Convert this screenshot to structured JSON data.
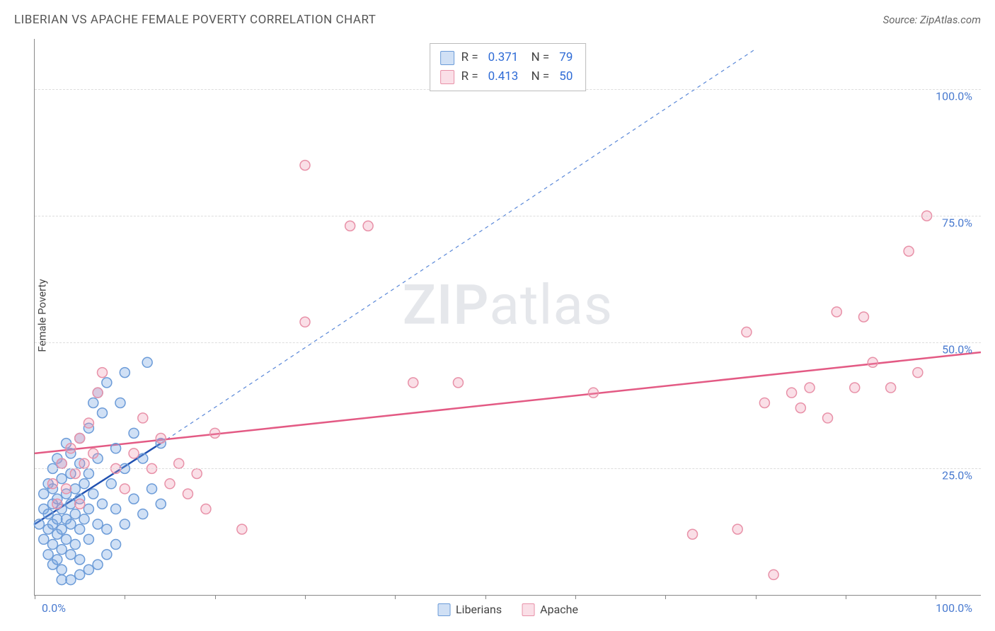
{
  "header": {
    "title": "LIBERIAN VS APACHE FEMALE POVERTY CORRELATION CHART",
    "source": "Source: ZipAtlas.com"
  },
  "ylabel": "Female Poverty",
  "watermark_prefix": "ZIP",
  "watermark_suffix": "atlas",
  "chart": {
    "type": "scatter",
    "background_color": "#ffffff",
    "grid_color": "#dddddd",
    "axis_color": "#888888",
    "label_color": "#4a7bd0",
    "x_min": 0,
    "x_max": 105,
    "y_min": 0,
    "y_max": 110,
    "y_ticks": [
      25,
      50,
      75,
      100
    ],
    "y_tick_labels": [
      "25.0%",
      "50.0%",
      "75.0%",
      "100.0%"
    ],
    "x_tick_positions": [
      0,
      10,
      20,
      30,
      40,
      50,
      60,
      70,
      80,
      90,
      100
    ],
    "x_label_min": "0.0%",
    "x_label_max": "100.0%",
    "marker_radius": 7,
    "marker_stroke_width": 1.5,
    "series": [
      {
        "name": "Liberians",
        "fill": "rgba(120,165,225,0.35)",
        "stroke": "#6b9bd8",
        "R": "0.371",
        "N": "79",
        "trend": {
          "x1": 0,
          "y1": 14,
          "x2": 14,
          "y2": 30,
          "stroke": "#2050b0",
          "width": 2.5,
          "dash": "none"
        },
        "trend_ext": {
          "x1": 14,
          "y1": 30,
          "x2": 80,
          "y2": 108,
          "stroke": "#5a88d8",
          "width": 1.2,
          "dash": "5,5"
        },
        "points": [
          [
            0.5,
            14
          ],
          [
            1,
            11
          ],
          [
            1,
            17
          ],
          [
            1,
            20
          ],
          [
            1.5,
            8
          ],
          [
            1.5,
            13
          ],
          [
            1.5,
            16
          ],
          [
            1.5,
            22
          ],
          [
            2,
            6
          ],
          [
            2,
            10
          ],
          [
            2,
            14
          ],
          [
            2,
            18
          ],
          [
            2,
            21
          ],
          [
            2,
            25
          ],
          [
            2.5,
            7
          ],
          [
            2.5,
            12
          ],
          [
            2.5,
            15
          ],
          [
            2.5,
            19
          ],
          [
            2.5,
            27
          ],
          [
            3,
            5
          ],
          [
            3,
            9
          ],
          [
            3,
            13
          ],
          [
            3,
            17
          ],
          [
            3,
            23
          ],
          [
            3,
            26
          ],
          [
            3.5,
            11
          ],
          [
            3.5,
            15
          ],
          [
            3.5,
            20
          ],
          [
            3.5,
            30
          ],
          [
            4,
            8
          ],
          [
            4,
            14
          ],
          [
            4,
            18
          ],
          [
            4,
            24
          ],
          [
            4,
            28
          ],
          [
            4.5,
            10
          ],
          [
            4.5,
            16
          ],
          [
            4.5,
            21
          ],
          [
            5,
            7
          ],
          [
            5,
            13
          ],
          [
            5,
            19
          ],
          [
            5,
            26
          ],
          [
            5,
            31
          ],
          [
            5.5,
            15
          ],
          [
            5.5,
            22
          ],
          [
            6,
            11
          ],
          [
            6,
            17
          ],
          [
            6,
            24
          ],
          [
            6,
            33
          ],
          [
            6.5,
            20
          ],
          [
            6.5,
            38
          ],
          [
            7,
            14
          ],
          [
            7,
            27
          ],
          [
            7,
            40
          ],
          [
            7.5,
            18
          ],
          [
            7.5,
            36
          ],
          [
            8,
            13
          ],
          [
            8,
            42
          ],
          [
            8.5,
            22
          ],
          [
            9,
            17
          ],
          [
            9,
            29
          ],
          [
            9.5,
            38
          ],
          [
            10,
            14
          ],
          [
            10,
            25
          ],
          [
            10,
            44
          ],
          [
            11,
            19
          ],
          [
            11,
            32
          ],
          [
            12,
            16
          ],
          [
            12,
            27
          ],
          [
            12.5,
            46
          ],
          [
            13,
            21
          ],
          [
            14,
            18
          ],
          [
            14,
            30
          ],
          [
            3,
            3
          ],
          [
            4,
            3
          ],
          [
            5,
            4
          ],
          [
            6,
            5
          ],
          [
            7,
            6
          ],
          [
            8,
            8
          ],
          [
            9,
            10
          ]
        ]
      },
      {
        "name": "Apache",
        "fill": "rgba(240,150,175,0.30)",
        "stroke": "#e891a8",
        "R": "0.413",
        "N": "50",
        "trend": {
          "x1": 0,
          "y1": 28,
          "x2": 105,
          "y2": 48,
          "stroke": "#e35a84",
          "width": 2.5,
          "dash": "none"
        },
        "points": [
          [
            2,
            22
          ],
          [
            2.5,
            18
          ],
          [
            3,
            26
          ],
          [
            3.5,
            21
          ],
          [
            4,
            29
          ],
          [
            4.5,
            24
          ],
          [
            5,
            31
          ],
          [
            5,
            18
          ],
          [
            5.5,
            26
          ],
          [
            6,
            34
          ],
          [
            6.5,
            28
          ],
          [
            7,
            40
          ],
          [
            7.5,
            44
          ],
          [
            9,
            25
          ],
          [
            10,
            21
          ],
          [
            11,
            28
          ],
          [
            12,
            35
          ],
          [
            13,
            25
          ],
          [
            14,
            31
          ],
          [
            15,
            22
          ],
          [
            16,
            26
          ],
          [
            17,
            20
          ],
          [
            18,
            24
          ],
          [
            19,
            17
          ],
          [
            20,
            32
          ],
          [
            23,
            13
          ],
          [
            30,
            54
          ],
          [
            30,
            85
          ],
          [
            35,
            73
          ],
          [
            37,
            73
          ],
          [
            42,
            42
          ],
          [
            47,
            42
          ],
          [
            62,
            40
          ],
          [
            73,
            12
          ],
          [
            78,
            13
          ],
          [
            79,
            52
          ],
          [
            81,
            38
          ],
          [
            82,
            4
          ],
          [
            85,
            37
          ],
          [
            86,
            41
          ],
          [
            88,
            35
          ],
          [
            89,
            56
          ],
          [
            91,
            41
          ],
          [
            92,
            55
          ],
          [
            93,
            46
          ],
          [
            95,
            41
          ],
          [
            97,
            68
          ],
          [
            98,
            44
          ],
          [
            99,
            75
          ],
          [
            84,
            40
          ]
        ]
      }
    ]
  },
  "legend": {
    "items": [
      {
        "label": "Liberians",
        "fill": "rgba(120,165,225,0.35)",
        "stroke": "#6b9bd8"
      },
      {
        "label": "Apache",
        "fill": "rgba(240,150,175,0.30)",
        "stroke": "#e891a8"
      }
    ]
  }
}
